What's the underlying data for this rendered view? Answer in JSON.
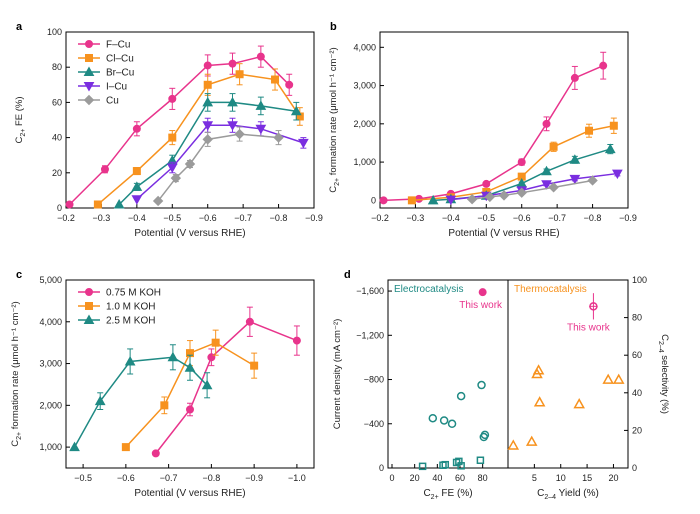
{
  "figure": "multi-panel",
  "chart_data": [
    {
      "panel": "a",
      "type": "line",
      "xlabel": "Potential (V versus RHE)",
      "ylabel_main": "C",
      "ylabel_sub": "2+",
      "ylabel_rest": " FE (%)",
      "xlim": [
        -0.2,
        -0.9
      ],
      "ylim": [
        0,
        100
      ],
      "xticks": [
        -0.2,
        -0.3,
        -0.4,
        -0.5,
        -0.6,
        -0.7,
        -0.8,
        -0.9
      ],
      "xtick_labels": [
        "−0.2",
        "−0.3",
        "−0.4",
        "−0.5",
        "−0.6",
        "−0.7",
        "−0.8",
        "−0.9"
      ],
      "yticks": [
        0,
        20,
        40,
        60,
        80,
        100
      ],
      "ytick_labels": [
        "0",
        "20",
        "40",
        "60",
        "80",
        "100"
      ],
      "legend": "top-left",
      "series": [
        {
          "name": "F–Cu",
          "color": "#e8348c",
          "marker": "circle",
          "x": [
            -0.21,
            -0.31,
            -0.4,
            -0.5,
            -0.6,
            -0.67,
            -0.75,
            -0.83
          ],
          "y": [
            2,
            22,
            45,
            62,
            81,
            82,
            86,
            70
          ],
          "err": [
            0,
            2,
            4,
            6,
            6,
            6,
            6,
            6
          ]
        },
        {
          "name": "Cl–Cu",
          "color": "#f7921e",
          "marker": "square",
          "x": [
            -0.29,
            -0.4,
            -0.5,
            -0.6,
            -0.69,
            -0.79,
            -0.86
          ],
          "y": [
            2,
            21,
            40,
            70,
            76,
            73,
            52
          ],
          "err": [
            0,
            2,
            4,
            6,
            6,
            6,
            5
          ]
        },
        {
          "name": "Br–Cu",
          "color": "#1f8a84",
          "marker": "triangle-up",
          "x": [
            -0.35,
            -0.4,
            -0.5,
            -0.6,
            -0.67,
            -0.75,
            -0.85
          ],
          "y": [
            2,
            12,
            27,
            60,
            60,
            58,
            55
          ],
          "err": [
            0,
            2,
            3,
            5,
            5,
            5,
            5
          ]
        },
        {
          "name": "I–Cu",
          "color": "#7a2ee0",
          "marker": "triangle-down",
          "x": [
            -0.4,
            -0.5,
            -0.6,
            -0.67,
            -0.75,
            -0.87
          ],
          "y": [
            5,
            23,
            47,
            47,
            45,
            37
          ],
          "err": [
            0,
            3,
            4,
            4,
            4,
            3
          ]
        },
        {
          "name": "Cu",
          "color": "#9b9b9b",
          "marker": "diamond",
          "x": [
            -0.46,
            -0.51,
            -0.55,
            -0.6,
            -0.69,
            -0.8
          ],
          "y": [
            4,
            17,
            25,
            39,
            42,
            40
          ],
          "err": [
            0,
            2,
            2,
            4,
            4,
            4
          ]
        }
      ]
    },
    {
      "panel": "b",
      "type": "line",
      "xlabel": "Potential (V versus RHE)",
      "ylabel_main": "C",
      "ylabel_sub": "2+",
      "ylabel_rest": " formation rate (μmol h⁻¹ cm⁻²)",
      "xlim": [
        -0.2,
        -0.9
      ],
      "ylim": [
        -200,
        4400
      ],
      "xticks": [
        -0.2,
        -0.3,
        -0.4,
        -0.5,
        -0.6,
        -0.7,
        -0.8,
        -0.9
      ],
      "xtick_labels": [
        "−0.2",
        "−0.3",
        "−0.4",
        "−0.5",
        "−0.6",
        "−0.7",
        "−0.8",
        "−0.9"
      ],
      "yticks": [
        0,
        1000,
        2000,
        3000,
        4000
      ],
      "ytick_labels": [
        "0",
        "1,000",
        "2,000",
        "3,000",
        "4,000"
      ],
      "series": [
        {
          "name": "F–Cu",
          "color": "#e8348c",
          "marker": "circle",
          "x": [
            -0.21,
            -0.31,
            -0.4,
            -0.5,
            -0.6,
            -0.67,
            -0.75,
            -0.83
          ],
          "y": [
            0,
            40,
            170,
            430,
            1000,
            2000,
            3200,
            3520
          ],
          "err": [
            0,
            0,
            0,
            40,
            80,
            180,
            300,
            350
          ]
        },
        {
          "name": "Cl–Cu",
          "color": "#f7921e",
          "marker": "square",
          "x": [
            -0.29,
            -0.4,
            -0.5,
            -0.6,
            -0.69,
            -0.79,
            -0.86
          ],
          "y": [
            0,
            80,
            220,
            620,
            1400,
            1820,
            1950
          ],
          "err": [
            0,
            0,
            30,
            60,
            120,
            170,
            200
          ]
        },
        {
          "name": "Br–Cu",
          "color": "#1f8a84",
          "marker": "triangle-up",
          "x": [
            -0.35,
            -0.4,
            -0.5,
            -0.6,
            -0.67,
            -0.75,
            -0.85
          ],
          "y": [
            0,
            30,
            120,
            440,
            760,
            1060,
            1340
          ],
          "err": [
            0,
            0,
            0,
            40,
            60,
            90,
            120
          ]
        },
        {
          "name": "I–Cu",
          "color": "#7a2ee0",
          "marker": "triangle-down",
          "x": [
            -0.4,
            -0.5,
            -0.6,
            -0.67,
            -0.75,
            -0.87
          ],
          "y": [
            20,
            120,
            260,
            420,
            560,
            700
          ],
          "err": [
            0,
            0,
            30,
            40,
            50,
            60
          ]
        },
        {
          "name": "Cu",
          "color": "#9b9b9b",
          "marker": "diamond",
          "x": [
            -0.46,
            -0.51,
            -0.55,
            -0.6,
            -0.69,
            -0.8
          ],
          "y": [
            30,
            90,
            130,
            200,
            340,
            520
          ],
          "err": [
            0,
            0,
            0,
            0,
            30,
            40
          ]
        }
      ]
    },
    {
      "panel": "c",
      "type": "line",
      "xlabel": "Potential (V versus RHE)",
      "ylabel_main": "C",
      "ylabel_sub": "2+",
      "ylabel_rest": " formation rate (μmol h⁻¹ cm⁻²)",
      "xlim": [
        -0.46,
        -1.04
      ],
      "ylim": [
        500,
        5000
      ],
      "xticks": [
        -0.5,
        -0.6,
        -0.7,
        -0.8,
        -0.9,
        -1.0
      ],
      "xtick_labels": [
        "−0.5",
        "−0.6",
        "−0.7",
        "−0.8",
        "−0.9",
        "−1.0"
      ],
      "yticks": [
        1000,
        2000,
        3000,
        4000,
        5000
      ],
      "ytick_labels": [
        "1,000",
        "2,000",
        "3,000",
        "4,000",
        "5,000"
      ],
      "legend": "top-left",
      "series": [
        {
          "name": "0.75 M KOH",
          "color": "#e8348c",
          "marker": "circle",
          "x": [
            -0.67,
            -0.75,
            -0.8,
            -0.89,
            -1.0
          ],
          "y": [
            850,
            1900,
            3150,
            4000,
            3550
          ],
          "err": [
            0,
            150,
            200,
            350,
            350
          ]
        },
        {
          "name": "1.0 M KOH",
          "color": "#f7921e",
          "marker": "square",
          "x": [
            -0.6,
            -0.69,
            -0.75,
            -0.81,
            -0.9
          ],
          "y": [
            1000,
            2000,
            3250,
            3500,
            2950
          ],
          "err": [
            0,
            200,
            300,
            300,
            300
          ]
        },
        {
          "name": "2.5 M KOH",
          "color": "#1f8a84",
          "marker": "triangle-up",
          "x": [
            -0.48,
            -0.54,
            -0.61,
            -0.71,
            -0.75,
            -0.79
          ],
          "y": [
            1000,
            2100,
            3050,
            3150,
            2900,
            2480
          ],
          "err": [
            0,
            200,
            300,
            300,
            300,
            300
          ]
        }
      ]
    },
    {
      "panel": "d",
      "type": "scatter",
      "ylabel_left": "Current density (mA cm⁻²)",
      "ylabel_right_main": "C",
      "ylabel_right_sub": "2–4",
      "ylabel_right_rest": " selectivity (%)",
      "left_ylim": [
        0,
        -1700
      ],
      "left_yticks": [
        0,
        -400,
        -800,
        -1200,
        -1600
      ],
      "left_ytick_labels": [
        "0",
        "−400",
        "−800",
        "−1,200",
        "−1,600"
      ],
      "right_ylim": [
        0,
        100
      ],
      "right_yticks": [
        0,
        20,
        40,
        60,
        80,
        100
      ],
      "right_ytick_labels": [
        "0",
        "20",
        "40",
        "60",
        "80",
        "100"
      ],
      "left_panel": {
        "title": "Electrocatalysis",
        "xlabel_main": "C",
        "xlabel_sub": "2+",
        "xlabel_rest": " FE (%)",
        "xlim": [
          0,
          90
        ],
        "xticks": [
          0,
          20,
          40,
          60,
          80
        ],
        "xtick_labels": [
          "0",
          "20",
          "40",
          "60",
          "80"
        ],
        "points_circle": [
          [
            36,
            -450
          ],
          [
            46,
            -430
          ],
          [
            53,
            -400
          ],
          [
            61,
            -650
          ],
          [
            79,
            -750
          ],
          [
            81,
            -280
          ],
          [
            82,
            -300
          ]
        ],
        "points_square": [
          [
            27,
            -15
          ],
          [
            45,
            -25
          ],
          [
            47,
            -30
          ],
          [
            57,
            -50
          ],
          [
            59,
            -60
          ],
          [
            61,
            -20
          ],
          [
            78,
            -70
          ]
        ],
        "this_work": {
          "x": 80,
          "y": -1590,
          "xerr": 3,
          "label": "This work"
        }
      },
      "right_panel": {
        "title": "Thermocatalysis",
        "xlabel_main": "C",
        "xlabel_sub": "2–4",
        "xlabel_rest": " Yield (%)",
        "xlim": [
          0,
          22
        ],
        "xticks": [
          0,
          5,
          10,
          15,
          20
        ],
        "xtick_labels": [
          "0",
          "5",
          "10",
          "15",
          "20"
        ],
        "points_triangle": [
          [
            1,
            12
          ],
          [
            4.5,
            14
          ],
          [
            5.5,
            50
          ],
          [
            5.8,
            52
          ],
          [
            6,
            35
          ],
          [
            13.5,
            34
          ],
          [
            19,
            47
          ],
          [
            21,
            47
          ]
        ],
        "this_work": {
          "x": 16.2,
          "y": 86,
          "xerr": 0.8,
          "yerr": 7,
          "label": "This work"
        }
      }
    }
  ],
  "colors": {
    "pink": "#e8348c",
    "orange": "#f7921e",
    "teal": "#1f8a84",
    "purple": "#7a2ee0",
    "grey": "#9b9b9b"
  }
}
